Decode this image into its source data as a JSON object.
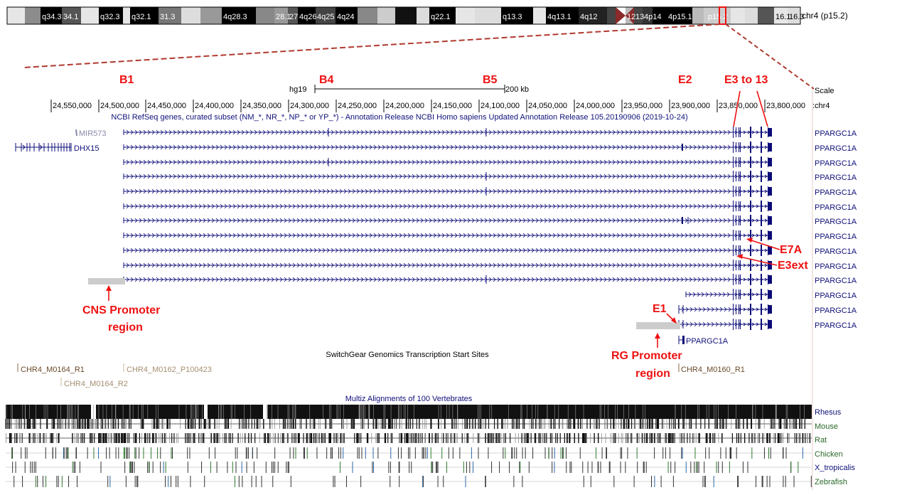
{
  "ideogram": {
    "bands": [
      "q34.3",
      "34.1",
      "q32.3",
      "q32.1",
      "31.3",
      "4q28.3",
      "28.1",
      "27",
      "4q26",
      "4q25",
      "4q24",
      "q22.1",
      "q13.3",
      "4q13.1",
      "4q12",
      "12",
      "13",
      "4p14",
      "4p15.1",
      "p15.2",
      "16.1",
      "16.3"
    ],
    "chrom_label": "chr4 (p15.2)"
  },
  "scale": {
    "assembly": "hg19",
    "bar_label": "200 kb",
    "scale_title": "Scale",
    "chrom_title": "chr4",
    "ticks": [
      "24,550,000",
      "24,500,000",
      "24,450,000",
      "24,400,000",
      "24,350,000",
      "24,300,000",
      "24,250,000",
      "24,200,000",
      "24,150,000",
      "24,100,000",
      "24,050,000",
      "24,000,000",
      "23,950,000",
      "23,900,000",
      "23,850,000",
      "23,800,000"
    ]
  },
  "refseq": {
    "title": "NCBI RefSeq genes, curated subset (NM_*, NR_*, NP_* or YP_*) - Annotation Release NCBI Homo sapiens Updated Annotation Release 105.20190906 (2019-10-24)",
    "mir_label": "MIR573",
    "dhx_label": "DHX15",
    "pgc_short_label": "PPARGC1A",
    "rows": [
      "PPARGC1A",
      "PPARGC1A",
      "PPARGC1A",
      "PPARGC1A",
      "PPARGC1A",
      "PPARGC1A",
      "PPARGC1A",
      "PPARGC1A",
      "PPARGC1A",
      "PPARGC1A",
      "PPARGC1A",
      "PPARGC1A",
      "PPARGC1A",
      "PPARGC1A"
    ]
  },
  "switchgear": {
    "title": "SwitchGear Genomics Transcription Start Sites",
    "labels": [
      "CHR4_M0164_R1",
      "CHR4_M0162_P100423",
      "CHR4_M0164_R2",
      "CHR4_M0160_R1"
    ]
  },
  "multiz": {
    "title": "Multiz Alignments of 100 Vertebrates",
    "species": [
      "Rhesus",
      "Mouse",
      "Rat",
      "Chicken",
      "X_tropicalis",
      "Zebrafish"
    ]
  },
  "annotations": {
    "b1": "B1",
    "b4": "B4",
    "b5": "B5",
    "e2": "E2",
    "e3to13": "E3 to 13",
    "e7a": "E7A",
    "e3ext": "E3ext",
    "e1": "E1",
    "cns1": "CNS Promoter",
    "cns2": "region",
    "rg1": "RG Promoter",
    "rg2": "region"
  },
  "colors": {
    "annotation_red": "#ee1111",
    "gene_navy": "#0c0c78",
    "mir_gray": "#8888aa",
    "promoter_gray": "#cccccc",
    "switchgear_brown": "#8b6b4a",
    "species_green": "#2a6a2a",
    "species_navy": "#10107a",
    "highlight_border": "#e8c8c8"
  }
}
